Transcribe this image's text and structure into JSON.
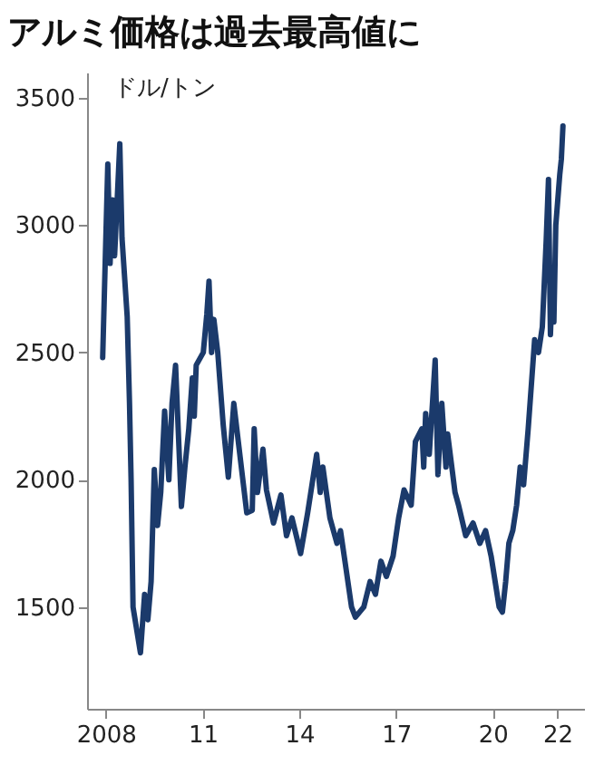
{
  "chart_data": {
    "type": "line",
    "title": "アルミ価格は過去最高値に",
    "ylabel": "ドル/トン",
    "x": [
      "2007-11-25",
      "2008-01-22",
      "2008-02-17",
      "2008-03-14",
      "2008-04-08",
      "2008-06-06",
      "2008-07-01",
      "2008-08-29",
      "2008-09-24",
      "2008-10-12",
      "2008-11-03",
      "2009-01-26",
      "2009-03-14",
      "2009-04-20",
      "2009-05-27",
      "2009-07-02",
      "2009-08-08",
      "2009-09-13",
      "2009-10-27",
      "2009-12-14",
      "2010-01-19",
      "2010-02-28",
      "2010-05-05",
      "2010-06-14",
      "2010-07-28",
      "2010-09-06",
      "2010-09-28",
      "2010-10-20",
      "2011-01-08",
      "2011-02-17",
      "2011-03-14",
      "2011-04-12",
      "2011-05-08",
      "2011-06-21",
      "2011-08-22",
      "2011-10-19",
      "2011-12-20",
      "2012-03-14",
      "2012-05-15",
      "2012-07-16",
      "2012-08-07",
      "2012-09-13",
      "2012-11-14",
      "2012-12-24",
      "2013-03-14",
      "2013-06-06",
      "2013-08-08",
      "2013-10-09",
      "2014-01-15",
      "2014-04-05",
      "2014-07-16",
      "2014-08-25",
      "2014-09-24",
      "2014-12-13",
      "2015-03-03",
      "2015-04-12",
      "2015-06-14",
      "2015-08-15",
      "2015-09-28",
      "2016-01-01",
      "2016-03-12",
      "2016-05-12",
      "2016-07-13",
      "2016-09-13",
      "2016-11-28",
      "2017-01-30",
      "2017-04-01",
      "2017-06-21",
      "2017-08-08",
      "2017-10-20",
      "2017-11-10",
      "2017-12-02",
      "2018-01-12",
      "2018-03-20",
      "2018-04-20",
      "2018-06-03",
      "2018-07-20",
      "2018-08-08",
      "2018-10-31",
      "2018-12-10",
      "2019-03-01",
      "2019-05-23",
      "2019-08-08",
      "2019-10-12",
      "2019-12-14",
      "2020-03-14",
      "2020-04-20",
      "2020-05-27",
      "2020-07-02",
      "2020-08-15",
      "2020-09-28",
      "2020-11-07",
      "2020-12-16",
      "2021-02-06",
      "2021-04-20",
      "2021-06-03",
      "2021-07-16",
      "2021-08-29",
      "2021-09-24",
      "2021-10-16",
      "2021-11-10",
      "2021-11-24",
      "2021-12-16",
      "2022-01-30",
      "2022-02-17",
      "2022-03-07"
    ],
    "series": [
      {
        "color": "#1b3a6b",
        "values": [
          2480,
          3240,
          2850,
          3100,
          2880,
          3320,
          2950,
          2640,
          2300,
          2000,
          1500,
          1320,
          1550,
          1450,
          1600,
          2040,
          1820,
          1950,
          2270,
          2000,
          2300,
          2450,
          1895,
          2050,
          2200,
          2400,
          2250,
          2450,
          2500,
          2650,
          2780,
          2500,
          2630,
          2500,
          2215,
          2010,
          2300,
          2050,
          1870,
          1880,
          2200,
          1950,
          2120,
          1960,
          1830,
          1940,
          1780,
          1850,
          1710,
          1870,
          2100,
          1950,
          2050,
          1850,
          1750,
          1800,
          1650,
          1500,
          1460,
          1500,
          1600,
          1550,
          1680,
          1620,
          1700,
          1850,
          1960,
          1900,
          2150,
          2200,
          2050,
          2260,
          2100,
          2470,
          2020,
          2300,
          2050,
          2180,
          1950,
          1900,
          1780,
          1830,
          1750,
          1800,
          1700,
          1500,
          1480,
          1600,
          1750,
          1800,
          1900,
          2050,
          1980,
          2200,
          2550,
          2500,
          2600,
          2940,
          3180,
          2570,
          2800,
          2620,
          3000,
          3200,
          3260,
          3390
        ]
      }
    ],
    "xlim": [
      "2007-06",
      "2022-11"
    ],
    "xticks": [
      "2008",
      {
        "value": "2011",
        "label": "11"
      },
      {
        "value": "2014",
        "label": "14"
      },
      {
        "value": "2017",
        "label": "17"
      },
      {
        "value": "2020",
        "label": "20"
      },
      {
        "value": "2022",
        "label": "22"
      }
    ],
    "ylim": [
      1100,
      3600
    ],
    "yticks": [
      1500,
      2000,
      2500,
      3000,
      3500
    ],
    "grid": false,
    "legend": false,
    "marker": "none",
    "line_style": "solid"
  }
}
